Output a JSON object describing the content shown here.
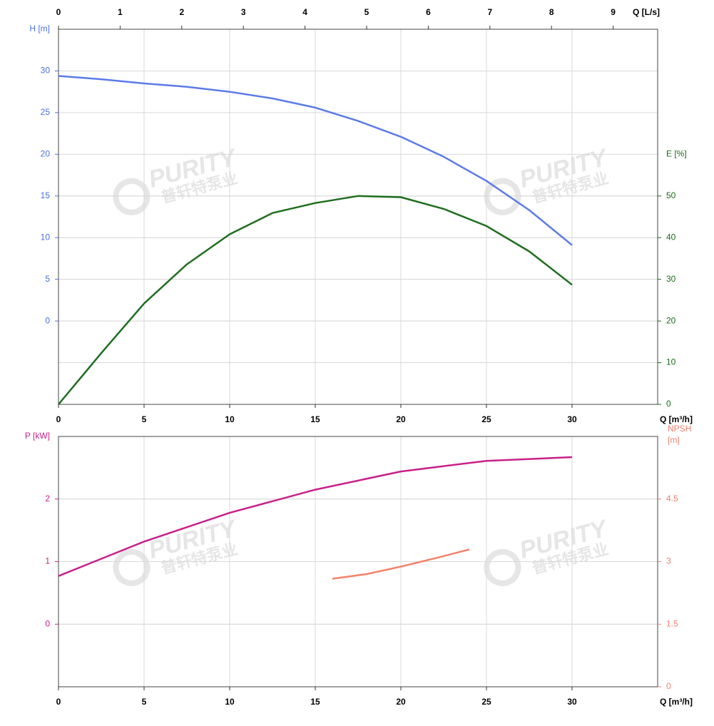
{
  "chart_data": [
    {
      "type": "line",
      "x_label": "Q [m³/h]",
      "x2_label": "Q [L/s]",
      "y_label": "H [m]",
      "y2_label": "E [%]",
      "xlim": [
        0,
        35
      ],
      "xticks": [
        0,
        5,
        10,
        15,
        20,
        25,
        30
      ],
      "x2lim": [
        0,
        9.722
      ],
      "x2ticks": [
        0,
        1,
        2,
        3,
        4,
        5,
        6,
        7,
        8,
        9
      ],
      "ylim": [
        -10,
        35
      ],
      "yticks": [
        0,
        5,
        10,
        15,
        20,
        25,
        30
      ],
      "y_color": "#4a6fe0",
      "y2lim": [
        0,
        90
      ],
      "y2ticks": [
        0,
        10,
        20,
        30,
        40,
        50
      ],
      "y2_color": "#1a6b1a",
      "grid": true,
      "x": [
        0,
        2.5,
        5,
        7.5,
        10,
        12.5,
        15,
        17.5,
        20,
        22.5,
        25,
        27.5,
        30
      ],
      "series": [
        {
          "color": "#5b7be8",
          "values": [
            29.4,
            29.0,
            28.5,
            28.1,
            27.5,
            26.7,
            25.6,
            24.0,
            22.1,
            19.7,
            16.8,
            13.3,
            9.1
          ]
        },
        {
          "color": "#1f6e1f",
          "axis": "y2",
          "values": [
            0,
            12.3,
            24.2,
            33.6,
            40.8,
            45.9,
            48.3,
            50.0,
            49.7,
            46.9,
            42.8,
            36.7,
            28.7
          ]
        }
      ]
    },
    {
      "type": "line",
      "x_label": "Q [m³/h]",
      "y_label": "P [kW]",
      "y2_label": [
        "NPSH",
        "[m]"
      ],
      "xlim": [
        0,
        35
      ],
      "xticks": [
        0,
        5,
        10,
        15,
        20,
        25,
        30
      ],
      "ylim": [
        -1,
        3
      ],
      "yticks": [
        0,
        1,
        2
      ],
      "y_color": "#c8208a",
      "y2lim": [
        0,
        6
      ],
      "y2ticks": [
        0,
        1.5,
        3,
        4.5
      ],
      "y2_color": "#f08070",
      "grid": true,
      "x": [
        0,
        5,
        10,
        15,
        20,
        25,
        30
      ],
      "series": [
        {
          "color": "#c8208a",
          "values": [
            0.77,
            1.32,
            1.78,
            2.15,
            2.44,
            2.61,
            2.67
          ]
        },
        {
          "color": "#f5826c",
          "axis": "y2",
          "x": [
            16,
            18,
            20,
            22,
            24
          ],
          "values": [
            2.59,
            2.7,
            2.88,
            3.08,
            3.29
          ]
        }
      ]
    }
  ],
  "watermark": {
    "brand": "PURITY",
    "local": "普轩特泵业"
  }
}
